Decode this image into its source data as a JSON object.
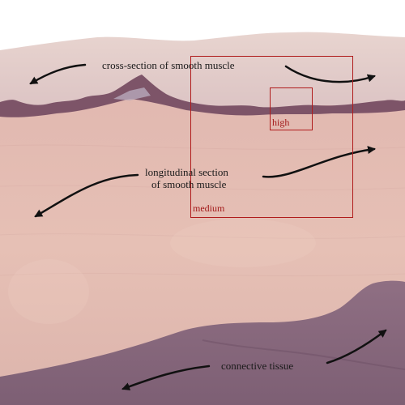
{
  "labels": {
    "cross_section": "cross-section of smooth muscle",
    "longitudinal_line1": "longitudinal section",
    "longitudinal_line2": "of smooth muscle",
    "connective": "connective tissue"
  },
  "zoom_boxes": {
    "medium": "medium",
    "high": "high"
  },
  "colors": {
    "background": "#ffffff",
    "cross_section_layer": "#e4ccc8",
    "dark_boundary": "#7a4f64",
    "longitudinal_layer": "#e3bbb3",
    "connective_tissue": "#8e6e82",
    "zoom_box": "#b01c1c",
    "arrow": "#111111"
  },
  "icons": [
    "arrow-icon"
  ]
}
